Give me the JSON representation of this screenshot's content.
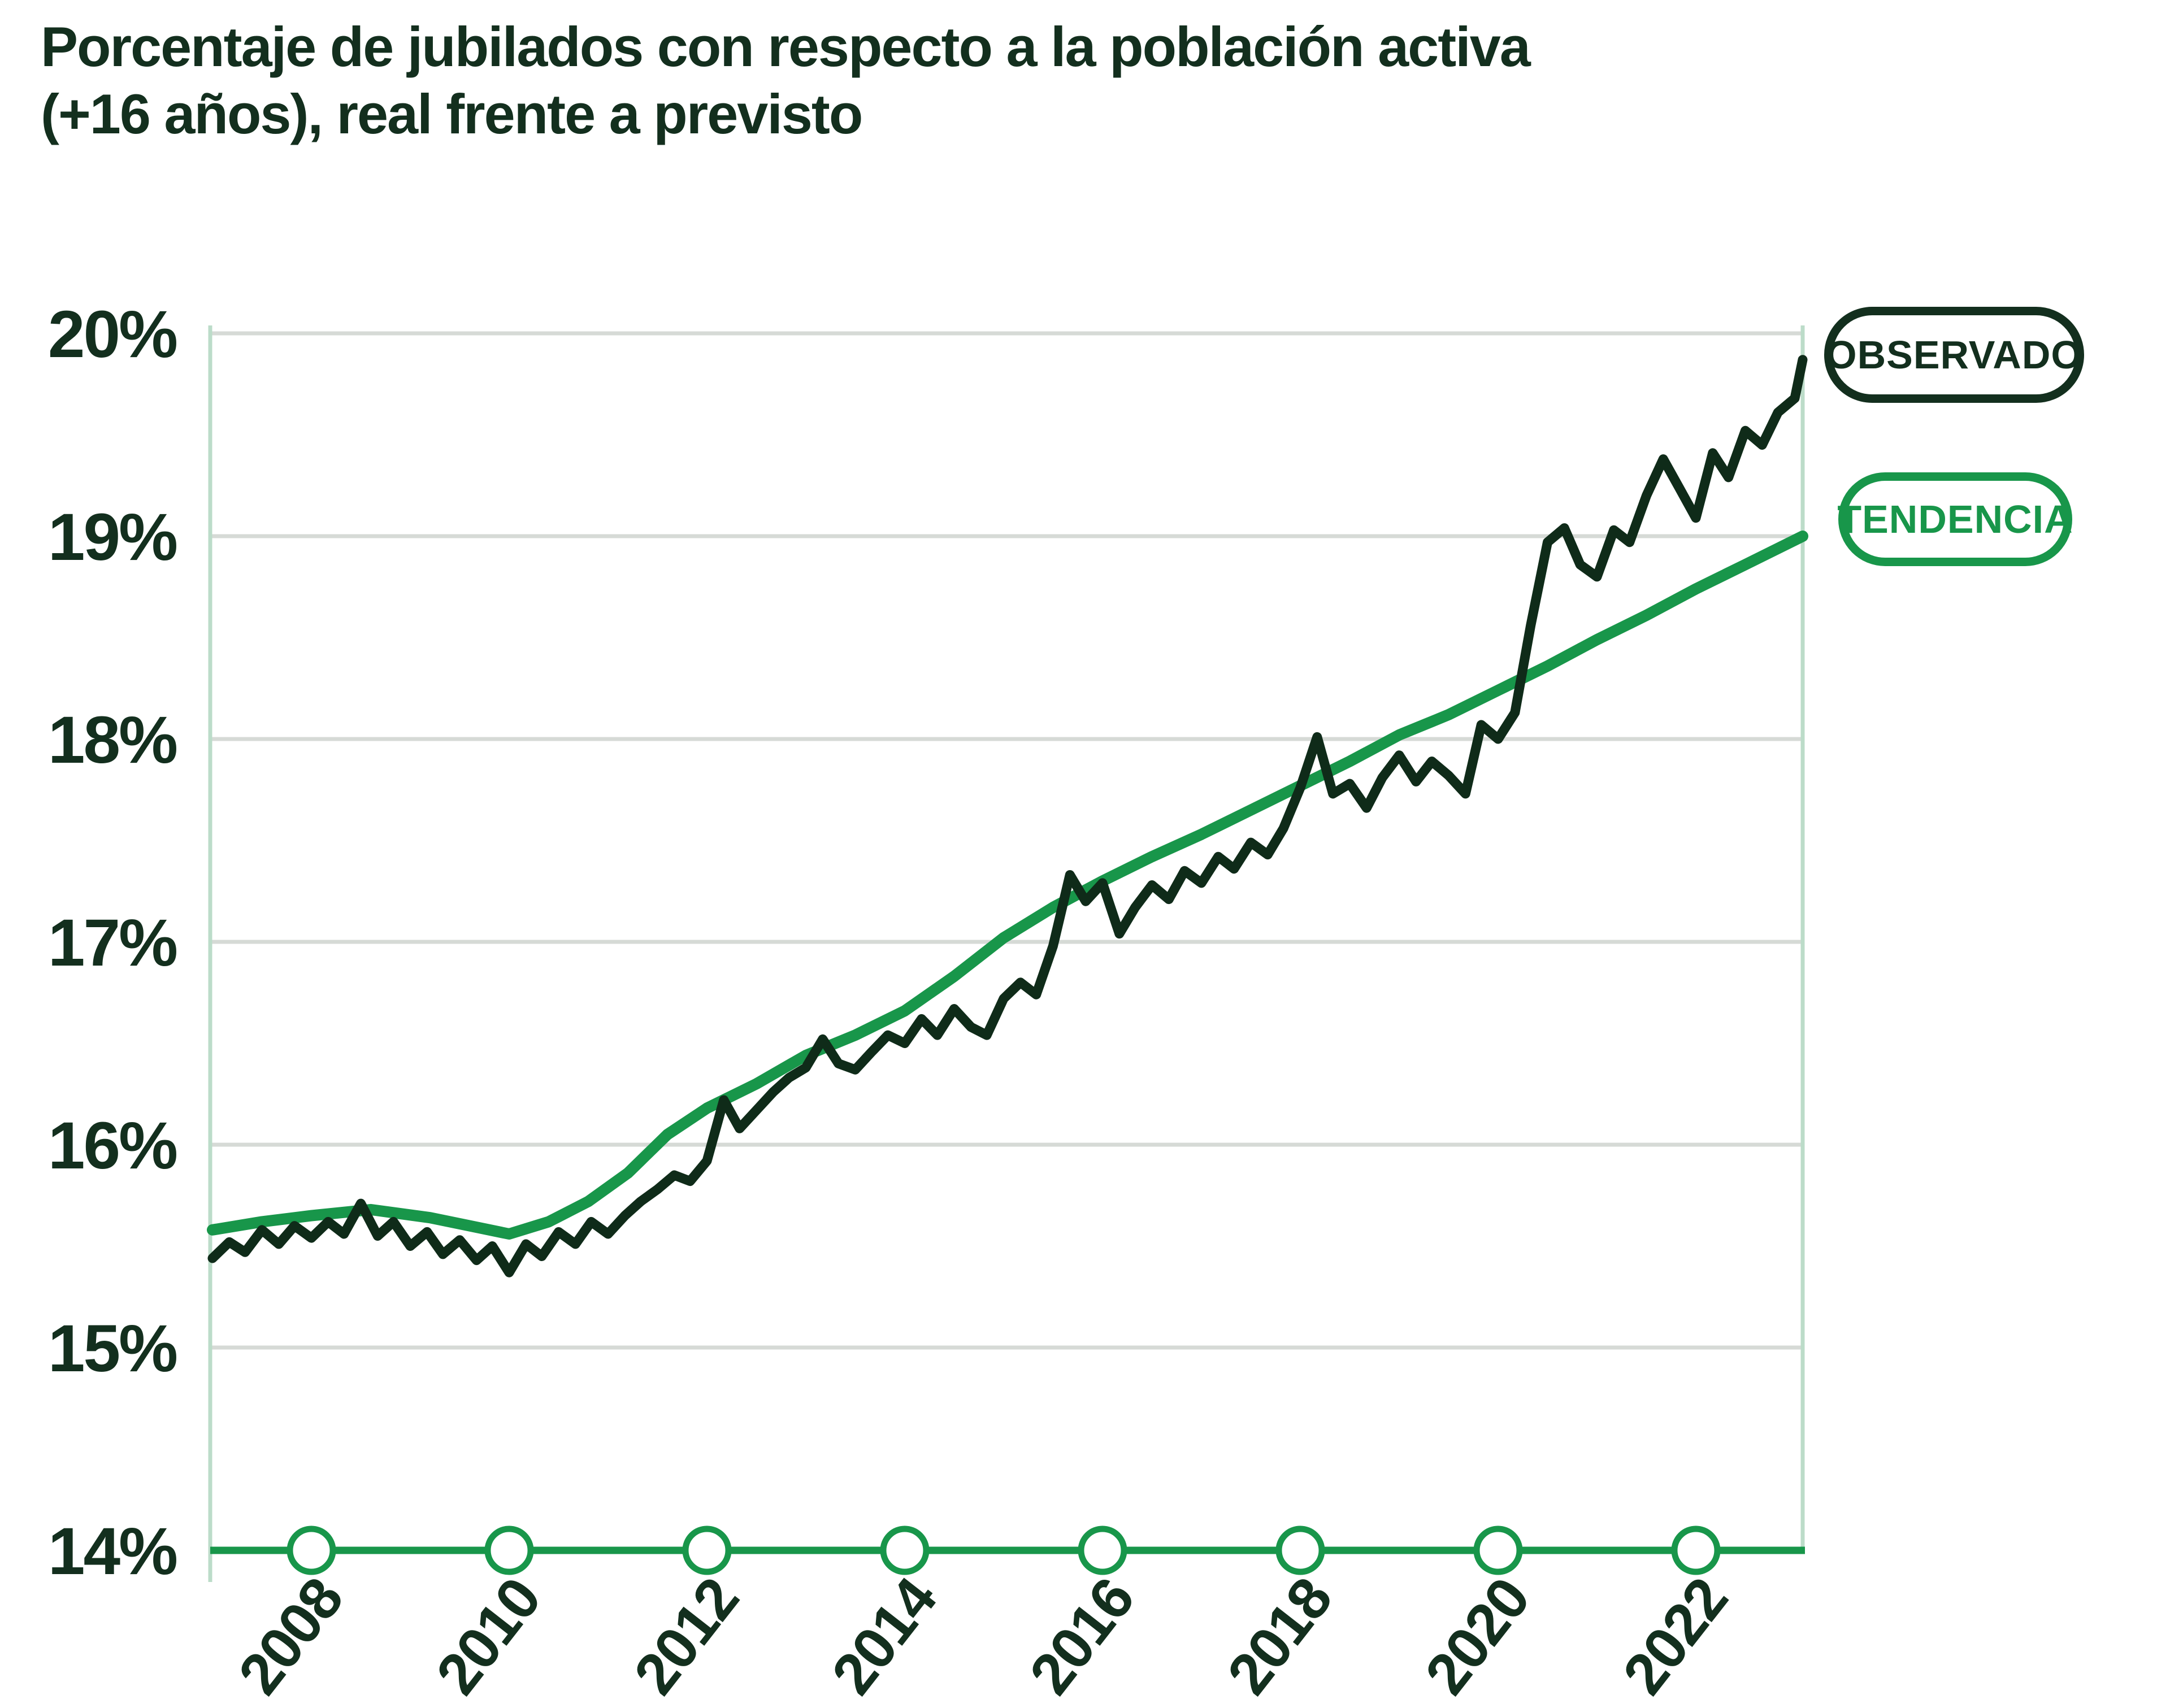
{
  "title": {
    "line1": "Porcentaje de jubilados con respecto a la población activa",
    "line2": "(+16 años), real frente a previsto"
  },
  "legend": {
    "observado": "OBSERVADO",
    "tendencia": "TENDENCIA"
  },
  "colors": {
    "observed_line": "#0f2b19",
    "trend_line": "#18964a",
    "axis_line": "#18964a",
    "grid_line": "#d6dad6",
    "plot_border": "#bcdcc9",
    "text": "#132f1e",
    "background": "#ffffff",
    "marker_fill": "#ffffff"
  },
  "chart_data": {
    "type": "line",
    "title": "Porcentaje de jubilados con respecto a la población activa (+16 años), real frente a previsto",
    "xlabel": "",
    "ylabel": "",
    "x_range": [
      2007,
      2023.08
    ],
    "y_range": [
      14,
      20
    ],
    "grid": true,
    "legend_position": "right",
    "y_ticks": [
      {
        "value": 20,
        "label": "20%"
      },
      {
        "value": 19,
        "label": "19%"
      },
      {
        "value": 18,
        "label": "18%"
      },
      {
        "value": 17,
        "label": "17%"
      },
      {
        "value": 16,
        "label": "16%"
      },
      {
        "value": 15,
        "label": "15%"
      },
      {
        "value": 14,
        "label": "14%"
      }
    ],
    "x_ticks": [
      {
        "value": 2008,
        "label": "2008"
      },
      {
        "value": 2010,
        "label": "2010"
      },
      {
        "value": 2012,
        "label": "2012"
      },
      {
        "value": 2014,
        "label": "2014"
      },
      {
        "value": 2016,
        "label": "2016"
      },
      {
        "value": 2018,
        "label": "2018"
      },
      {
        "value": 2020,
        "label": "2020"
      },
      {
        "value": 2022,
        "label": "2022"
      }
    ],
    "series": [
      {
        "name": "OBSERVADO",
        "color": "#0f2b19",
        "width": 17,
        "points": [
          [
            2007.0,
            15.44
          ],
          [
            2007.17,
            15.52
          ],
          [
            2007.33,
            15.47
          ],
          [
            2007.5,
            15.58
          ],
          [
            2007.67,
            15.51
          ],
          [
            2007.83,
            15.6
          ],
          [
            2008.0,
            15.54
          ],
          [
            2008.17,
            15.62
          ],
          [
            2008.33,
            15.56
          ],
          [
            2008.5,
            15.71
          ],
          [
            2008.67,
            15.55
          ],
          [
            2008.83,
            15.62
          ],
          [
            2009.0,
            15.5
          ],
          [
            2009.17,
            15.57
          ],
          [
            2009.33,
            15.46
          ],
          [
            2009.5,
            15.53
          ],
          [
            2009.67,
            15.43
          ],
          [
            2009.83,
            15.5
          ],
          [
            2010.0,
            15.37
          ],
          [
            2010.17,
            15.51
          ],
          [
            2010.33,
            15.45
          ],
          [
            2010.5,
            15.57
          ],
          [
            2010.67,
            15.51
          ],
          [
            2010.83,
            15.62
          ],
          [
            2011.0,
            15.56
          ],
          [
            2011.17,
            15.65
          ],
          [
            2011.33,
            15.72
          ],
          [
            2011.5,
            15.78
          ],
          [
            2011.67,
            15.85
          ],
          [
            2011.83,
            15.82
          ],
          [
            2012.0,
            15.92
          ],
          [
            2012.17,
            16.22
          ],
          [
            2012.33,
            16.08
          ],
          [
            2012.5,
            16.17
          ],
          [
            2012.67,
            16.26
          ],
          [
            2012.83,
            16.33
          ],
          [
            2013.0,
            16.38
          ],
          [
            2013.17,
            16.52
          ],
          [
            2013.33,
            16.4
          ],
          [
            2013.5,
            16.37
          ],
          [
            2013.67,
            16.46
          ],
          [
            2013.83,
            16.54
          ],
          [
            2014.0,
            16.5
          ],
          [
            2014.17,
            16.62
          ],
          [
            2014.33,
            16.54
          ],
          [
            2014.5,
            16.67
          ],
          [
            2014.67,
            16.58
          ],
          [
            2014.83,
            16.54
          ],
          [
            2015.0,
            16.72
          ],
          [
            2015.17,
            16.8
          ],
          [
            2015.33,
            16.74
          ],
          [
            2015.5,
            16.98
          ],
          [
            2015.67,
            17.33
          ],
          [
            2015.83,
            17.2
          ],
          [
            2016.0,
            17.29
          ],
          [
            2016.17,
            17.04
          ],
          [
            2016.33,
            17.17
          ],
          [
            2016.5,
            17.28
          ],
          [
            2016.67,
            17.21
          ],
          [
            2016.83,
            17.35
          ],
          [
            2017.0,
            17.29
          ],
          [
            2017.17,
            17.42
          ],
          [
            2017.33,
            17.36
          ],
          [
            2017.5,
            17.49
          ],
          [
            2017.67,
            17.43
          ],
          [
            2017.83,
            17.56
          ],
          [
            2018.0,
            17.76
          ],
          [
            2018.17,
            18.01
          ],
          [
            2018.33,
            17.73
          ],
          [
            2018.5,
            17.78
          ],
          [
            2018.67,
            17.66
          ],
          [
            2018.83,
            17.81
          ],
          [
            2019.0,
            17.92
          ],
          [
            2019.17,
            17.79
          ],
          [
            2019.33,
            17.89
          ],
          [
            2019.5,
            17.82
          ],
          [
            2019.67,
            17.73
          ],
          [
            2019.83,
            18.07
          ],
          [
            2020.0,
            18.0
          ],
          [
            2020.17,
            18.13
          ],
          [
            2020.33,
            18.56
          ],
          [
            2020.5,
            18.97
          ],
          [
            2020.67,
            19.04
          ],
          [
            2020.83,
            18.86
          ],
          [
            2021.0,
            18.8
          ],
          [
            2021.17,
            19.03
          ],
          [
            2021.33,
            18.97
          ],
          [
            2021.5,
            19.2
          ],
          [
            2021.67,
            19.38
          ],
          [
            2021.83,
            19.24
          ],
          [
            2022.0,
            19.09
          ],
          [
            2022.17,
            19.41
          ],
          [
            2022.33,
            19.29
          ],
          [
            2022.5,
            19.52
          ],
          [
            2022.67,
            19.45
          ],
          [
            2022.83,
            19.61
          ],
          [
            2023.0,
            19.68
          ],
          [
            2023.08,
            19.87
          ]
        ]
      },
      {
        "name": "TENDENCIA",
        "color": "#18964a",
        "width": 20,
        "points": [
          [
            2007.0,
            15.58
          ],
          [
            2007.5,
            15.62
          ],
          [
            2008.0,
            15.65
          ],
          [
            2008.6,
            15.68
          ],
          [
            2009.2,
            15.64
          ],
          [
            2009.6,
            15.6
          ],
          [
            2010.0,
            15.56
          ],
          [
            2010.4,
            15.62
          ],
          [
            2010.8,
            15.72
          ],
          [
            2011.2,
            15.86
          ],
          [
            2011.6,
            16.05
          ],
          [
            2012.0,
            16.18
          ],
          [
            2012.5,
            16.3
          ],
          [
            2013.0,
            16.44
          ],
          [
            2013.5,
            16.54
          ],
          [
            2014.0,
            16.66
          ],
          [
            2014.5,
            16.83
          ],
          [
            2015.0,
            17.02
          ],
          [
            2015.5,
            17.17
          ],
          [
            2016.0,
            17.3
          ],
          [
            2016.5,
            17.42
          ],
          [
            2017.0,
            17.53
          ],
          [
            2017.5,
            17.65
          ],
          [
            2018.0,
            17.77
          ],
          [
            2018.5,
            17.89
          ],
          [
            2019.0,
            18.02
          ],
          [
            2019.5,
            18.12
          ],
          [
            2020.0,
            18.24
          ],
          [
            2020.5,
            18.36
          ],
          [
            2021.0,
            18.49
          ],
          [
            2021.5,
            18.61
          ],
          [
            2022.0,
            18.74
          ],
          [
            2022.5,
            18.86
          ],
          [
            2023.08,
            19.0
          ]
        ]
      }
    ]
  }
}
